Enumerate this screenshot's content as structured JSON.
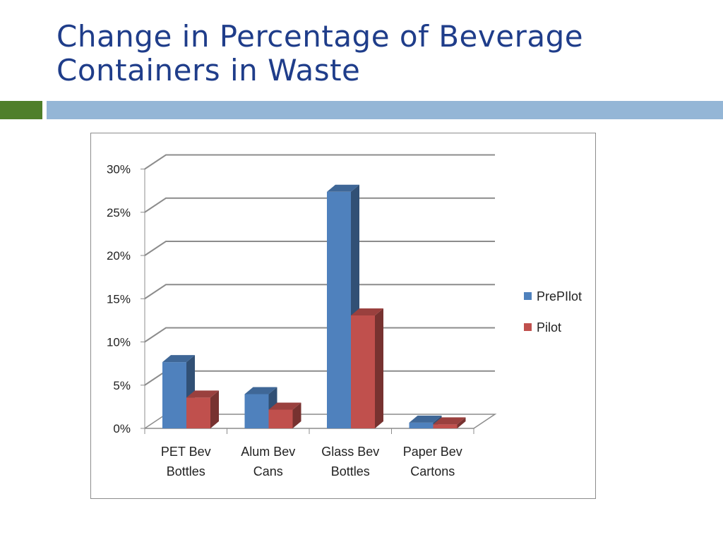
{
  "slide": {
    "title": "Change in Percentage of Beverage Containers in Waste"
  },
  "colors": {
    "title": "#1f3d8a",
    "accent_green": "#4f7f2a",
    "accent_blue": "#94b6d6",
    "prepilot": "#4f81bd",
    "pilot": "#c0504d"
  },
  "chart_data": {
    "type": "bar",
    "style": "3d-clustered",
    "categories": [
      [
        "PET Bev",
        "Bottles"
      ],
      [
        "Alum Bev",
        "Cans"
      ],
      [
        "Glass Bev",
        "Bottles"
      ],
      [
        "Paper Bev",
        "Cartons"
      ]
    ],
    "series": [
      {
        "name": "PrePIlot",
        "color": "#4f81bd",
        "values": [
          7.5,
          3.8,
          27.2,
          0.5
        ]
      },
      {
        "name": "Pilot",
        "color": "#c0504d",
        "values": [
          3.4,
          2.0,
          12.9,
          0.3
        ]
      }
    ],
    "yticks": [
      "0%",
      "5%",
      "10%",
      "15%",
      "20%",
      "25%",
      "30%"
    ],
    "ylim": [
      0,
      30
    ],
    "grid": true,
    "legend_position": "right"
  }
}
